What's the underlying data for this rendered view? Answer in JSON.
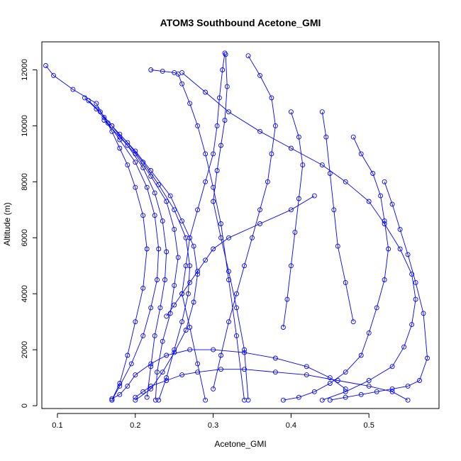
{
  "chart_data": {
    "type": "scatter",
    "title": "ATOM3 Southbound Acetone_GMI",
    "xlabel": "Acetone_GMI",
    "ylabel": "Altitude (m)",
    "xlim": [
      0.08,
      0.59
    ],
    "ylim": [
      -100,
      13000
    ],
    "x_ticks": [
      0.1,
      0.2,
      0.3,
      0.4,
      0.5
    ],
    "x_tick_labels": [
      "0.1",
      "0.2",
      "0.3",
      "0.4",
      "0.5"
    ],
    "y_ticks": [
      0,
      2000,
      4000,
      6000,
      8000,
      10000,
      12000
    ],
    "y_tick_labels": [
      "0",
      "2000",
      "4000",
      "6000",
      "8000",
      "10000",
      "12000"
    ],
    "grid": false,
    "series_color": "#0000ff",
    "profiles": [
      {
        "x": [
          0.085,
          0.095,
          0.12,
          0.15,
          0.16,
          0.17,
          0.18,
          0.19,
          0.2,
          0.21,
          0.215,
          0.21,
          0.2,
          0.19,
          0.18,
          0.17
        ],
        "y": [
          12150,
          11800,
          11300,
          10800,
          10300,
          9800,
          9200,
          8600,
          7800,
          6800,
          5600,
          4200,
          3000,
          1800,
          800,
          200
        ]
      },
      {
        "x": [
          0.135,
          0.15,
          0.165,
          0.18,
          0.2,
          0.215,
          0.225,
          0.23,
          0.228,
          0.22,
          0.21,
          0.195,
          0.18,
          0.17
        ],
        "y": [
          11000,
          10600,
          10100,
          9500,
          8700,
          7800,
          6800,
          5600,
          4500,
          3500,
          2500,
          1500,
          700,
          200
        ]
      },
      {
        "x": [
          0.14,
          0.155,
          0.17,
          0.19,
          0.21,
          0.225,
          0.235,
          0.24,
          0.238,
          0.232,
          0.225,
          0.22,
          0.215
        ],
        "y": [
          10900,
          10500,
          10000,
          9300,
          8500,
          7600,
          6600,
          5500,
          4500,
          3500,
          2500,
          1400,
          300
        ]
      },
      {
        "x": [
          0.16,
          0.18,
          0.2,
          0.22,
          0.24,
          0.25,
          0.255,
          0.25,
          0.245,
          0.235,
          0.228,
          0.226
        ],
        "y": [
          10200,
          9600,
          9000,
          8200,
          7300,
          6300,
          5300,
          4300,
          3300,
          2300,
          1200,
          200
        ]
      },
      {
        "x": [
          0.17,
          0.19,
          0.21,
          0.23,
          0.25,
          0.265,
          0.27,
          0.268,
          0.26,
          0.25,
          0.24,
          0.23
        ],
        "y": [
          10000,
          9400,
          8700,
          7900,
          7000,
          6000,
          5000,
          4000,
          3000,
          2000,
          1000,
          200
        ]
      },
      {
        "x": [
          0.18,
          0.2,
          0.22,
          0.245,
          0.26,
          0.275,
          0.28,
          0.275,
          0.265,
          0.25,
          0.235,
          0.22,
          0.2
        ],
        "y": [
          9700,
          9100,
          8400,
          7500,
          6600,
          5700,
          4700,
          3700,
          2700,
          1900,
          1200,
          600,
          200
        ]
      },
      {
        "x": [
          0.22,
          0.235,
          0.25,
          0.255,
          0.26,
          0.27,
          0.28,
          0.29,
          0.3,
          0.31,
          0.32,
          0.33,
          0.34
        ],
        "y": [
          12000,
          11950,
          11900,
          11850,
          11500,
          10800,
          10000,
          9000,
          7800,
          6500,
          4500,
          2500,
          200
        ]
      },
      {
        "x": [
          0.26,
          0.29,
          0.32,
          0.36,
          0.4,
          0.44,
          0.47,
          0.5,
          0.52,
          0.54,
          0.555,
          0.56,
          0.555,
          0.545,
          0.53,
          0.5,
          0.47,
          0.44
        ],
        "y": [
          11900,
          11200,
          10500,
          9800,
          9200,
          8600,
          8000,
          7300,
          6500,
          5600,
          4700,
          3800,
          2900,
          2100,
          1400,
          900,
          500,
          200
        ]
      },
      {
        "x": [
          0.315,
          0.312,
          0.308,
          0.305,
          0.3,
          0.29,
          0.28,
          0.27,
          0.265,
          0.26,
          0.27,
          0.28,
          0.29
        ],
        "y": [
          12600,
          12000,
          11000,
          10000,
          9000,
          8000,
          7000,
          6000,
          5000,
          4000,
          2800,
          1500,
          200
        ]
      },
      {
        "x": [
          0.316,
          0.318,
          0.315,
          0.31,
          0.305,
          0.3,
          0.31,
          0.32,
          0.33,
          0.34,
          0.345
        ],
        "y": [
          12550,
          11400,
          10200,
          9300,
          8400,
          7300,
          6000,
          4800,
          3500,
          2000,
          200
        ]
      },
      {
        "x": [
          0.345,
          0.36,
          0.375,
          0.38,
          0.375,
          0.37,
          0.36,
          0.35,
          0.34,
          0.33,
          0.32,
          0.31,
          0.3
        ],
        "y": [
          12500,
          11800,
          11000,
          10000,
          9000,
          8000,
          7000,
          6000,
          5000,
          4000,
          3000,
          1800,
          600
        ]
      },
      {
        "x": [
          0.4,
          0.41,
          0.415,
          0.41,
          0.405,
          0.4,
          0.395,
          0.39
        ],
        "y": [
          10500,
          9600,
          8600,
          7400,
          6200,
          5000,
          3800,
          2800
        ]
      },
      {
        "x": [
          0.44,
          0.445,
          0.45,
          0.455,
          0.46,
          0.47,
          0.48
        ],
        "y": [
          10500,
          9600,
          8300,
          7000,
          5700,
          4400,
          3000
        ]
      },
      {
        "x": [
          0.48,
          0.49,
          0.505,
          0.515,
          0.52,
          0.525,
          0.52,
          0.51,
          0.5,
          0.49,
          0.47,
          0.45,
          0.43,
          0.41,
          0.39
        ],
        "y": [
          9600,
          9000,
          8300,
          7500,
          6600,
          5600,
          4500,
          3500,
          2600,
          1800,
          1200,
          800,
          500,
          300,
          200
        ]
      },
      {
        "x": [
          0.52,
          0.53,
          0.54,
          0.55,
          0.56,
          0.57,
          0.575,
          0.565,
          0.55,
          0.53,
          0.51,
          0.49,
          0.47,
          0.45
        ],
        "y": [
          8000,
          7200,
          6300,
          5400,
          4400,
          3300,
          1700,
          900,
          700,
          600,
          500,
          400,
          300,
          200
        ]
      },
      {
        "x": [
          0.2,
          0.21,
          0.22,
          0.24,
          0.26,
          0.28,
          0.31,
          0.34,
          0.38,
          0.42,
          0.46,
          0.5,
          0.53,
          0.55
        ],
        "y": [
          300,
          500,
          700,
          900,
          1100,
          1200,
          1300,
          1300,
          1200,
          1100,
          900,
          700,
          500,
          200
        ]
      },
      {
        "x": [
          0.17,
          0.18,
          0.19,
          0.2,
          0.22,
          0.24,
          0.27,
          0.3,
          0.34,
          0.38,
          0.42,
          0.45,
          0.47
        ],
        "y": [
          250,
          400,
          700,
          1100,
          1500,
          1800,
          2000,
          2000,
          1900,
          1700,
          1400,
          1000,
          600
        ]
      },
      {
        "x": [
          0.24,
          0.25,
          0.26,
          0.27,
          0.28,
          0.29,
          0.3,
          0.32,
          0.36,
          0.4,
          0.43
        ],
        "y": [
          3200,
          3600,
          4000,
          4400,
          4800,
          5200,
          5600,
          6000,
          6500,
          7000,
          7500
        ]
      }
    ]
  }
}
